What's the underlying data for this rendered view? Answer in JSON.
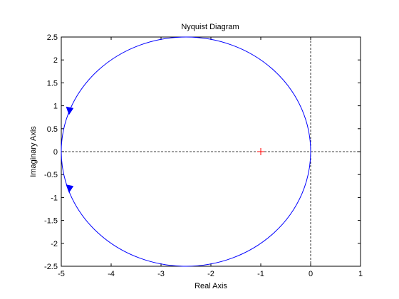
{
  "chart_data": {
    "type": "line",
    "title": "Nyquist Diagram",
    "xlabel": "Real Axis",
    "ylabel": "Imaginary Axis",
    "xlim": [
      -5,
      1
    ],
    "ylim": [
      -2.5,
      2.5
    ],
    "xticks": [
      -5,
      -4,
      -3,
      -2,
      -1,
      0,
      1
    ],
    "yticks": [
      -2.5,
      -2,
      -1.5,
      -1,
      -0.5,
      0,
      0.5,
      1,
      1.5,
      2,
      2.5
    ],
    "xtick_labels": [
      "-5",
      "-4",
      "-3",
      "-2",
      "-1",
      "0",
      "1"
    ],
    "ytick_labels": [
      "-2.5",
      "-2",
      "-1.5",
      "-1",
      "-0.5",
      "0",
      "0.5",
      "1",
      "1.5",
      "2",
      "2.5"
    ],
    "grid": false,
    "series": [
      {
        "color": "#0000ff",
        "shape": "circle",
        "center": [
          -2.5,
          0
        ],
        "radius": 2.5,
        "arrows": [
          {
            "at": [
              -4.83,
              0.9
            ],
            "direction": "down"
          },
          {
            "at": [
              -4.83,
              -0.8
            ],
            "direction": "down"
          }
        ]
      }
    ],
    "reference_lines": [
      {
        "type": "horizontal",
        "y": 0,
        "style": "dashed",
        "color": "#000000"
      },
      {
        "type": "vertical",
        "x": 0,
        "style": "dashed",
        "color": "#000000"
      }
    ],
    "critical_point": {
      "x": -1,
      "y": 0,
      "marker": "+",
      "color": "#ff0000"
    }
  }
}
